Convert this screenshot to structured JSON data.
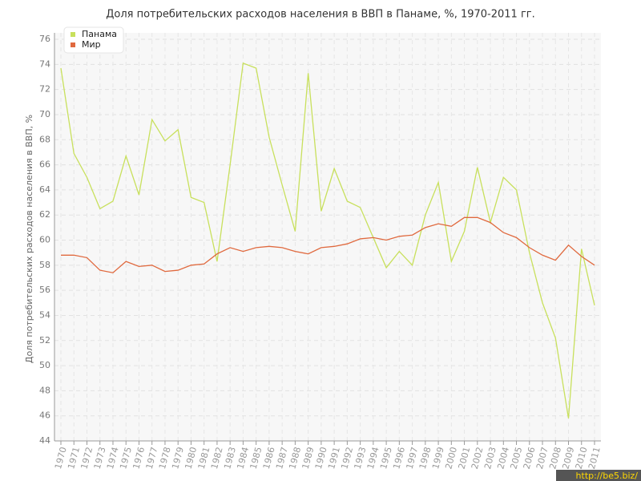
{
  "chart_data": {
    "type": "line",
    "title": "Доля потребительских расходов населения в ВВП в Панаме, %, 1970-2011 гг.",
    "y_label": "Доля потребительских расходов населения в ВВП, %",
    "watermark": "http://be5.biz/",
    "categories": [
      "1970",
      "1971",
      "1972",
      "1973",
      "1974",
      "1975",
      "1976",
      "1977",
      "1978",
      "1979",
      "1980",
      "1981",
      "1982",
      "1983",
      "1984",
      "1985",
      "1986",
      "1987",
      "1988",
      "1989",
      "1990",
      "1991",
      "1992",
      "1993",
      "1994",
      "1995",
      "1996",
      "1997",
      "1998",
      "1999",
      "2000",
      "2001",
      "2002",
      "2003",
      "2004",
      "2005",
      "2006",
      "2007",
      "2008",
      "2009",
      "2010",
      "2011"
    ],
    "series": [
      {
        "name": "Панама",
        "color": "#c8e05c",
        "values": [
          73.7,
          66.9,
          65.0,
          62.5,
          63.1,
          66.7,
          63.6,
          69.6,
          67.9,
          68.8,
          63.4,
          63.0,
          58.3,
          66.0,
          74.1,
          73.7,
          68.2,
          64.4,
          60.7,
          73.3,
          62.3,
          65.7,
          63.1,
          62.6,
          60.2,
          57.8,
          59.1,
          58.0,
          62.0,
          64.6,
          58.3,
          60.7,
          65.8,
          61.4,
          65.0,
          64.0,
          59.0,
          55.0,
          52.2,
          45.8,
          59.3,
          54.8
        ]
      },
      {
        "name": "Мир",
        "color": "#e0693e",
        "values": [
          58.8,
          58.8,
          58.6,
          57.6,
          57.4,
          58.3,
          57.9,
          58.0,
          57.5,
          57.6,
          58.0,
          58.1,
          58.9,
          59.4,
          59.1,
          59.4,
          59.5,
          59.4,
          59.1,
          58.9,
          59.4,
          59.5,
          59.7,
          60.1,
          60.2,
          60.0,
          60.3,
          60.4,
          61.0,
          61.3,
          61.1,
          61.8,
          61.8,
          61.4,
          60.6,
          60.2,
          59.4,
          58.8,
          58.4,
          59.6,
          58.7,
          58.0
        ]
      }
    ],
    "ylim": [
      44,
      76
    ],
    "yticks": [
      44,
      46,
      48,
      50,
      52,
      54,
      56,
      58,
      60,
      62,
      64,
      66,
      68,
      70,
      72,
      74,
      76
    ],
    "grid": true,
    "legend": "top-left"
  }
}
